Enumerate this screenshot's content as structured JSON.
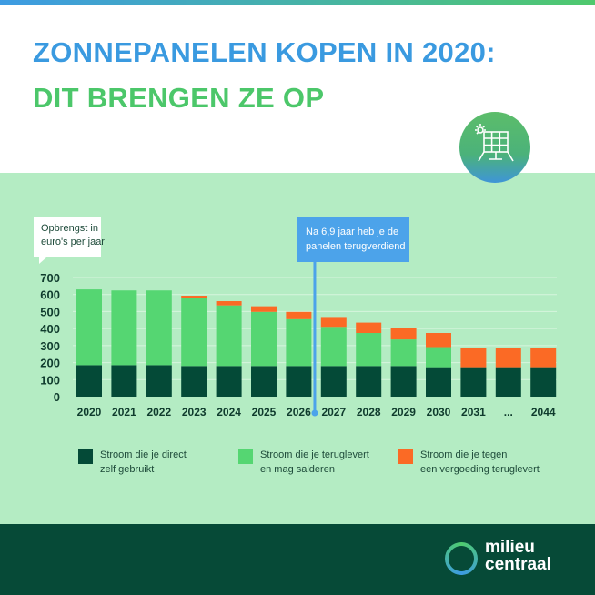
{
  "title": {
    "line1": "ZONNEPANELEN KOPEN IN 2020:",
    "line2": "DIT BRENGEN ZE OP"
  },
  "icon": "solar-panel-icon",
  "colors": {
    "direct": "#044a37",
    "salderen": "#55d672",
    "vergoeding": "#fb6a25",
    "title_blue": "#3a9ae0",
    "title_green": "#4cc76a",
    "callout": "#4ca3ea"
  },
  "chart_data": {
    "type": "bar",
    "stacked": true,
    "ylabel": "Opbrengst in euro's per jaar",
    "ylim": [
      0,
      700
    ],
    "yticks": [
      0,
      100,
      200,
      300,
      400,
      500,
      600,
      700
    ],
    "grid": true,
    "categories": [
      "2020",
      "2021",
      "2022",
      "2023",
      "2024",
      "2025",
      "2026",
      "2027",
      "2028",
      "2029",
      "2030",
      "2031",
      "...",
      "2044"
    ],
    "series": [
      {
        "name": "Stroom die je direct zelf gebruikt",
        "values": [
          185,
          185,
          185,
          180,
          180,
          180,
          180,
          180,
          180,
          180,
          173,
          173,
          173,
          173
        ]
      },
      {
        "name": "Stroom die je teruglevert en mag salderen",
        "values": [
          445,
          439,
          439,
          401,
          356,
          318,
          275,
          230,
          194,
          156,
          118,
          0,
          0,
          0
        ]
      },
      {
        "name": "Stroom die je tegen een vergoeding teruglevert",
        "values": [
          0,
          0,
          0,
          12,
          25,
          33,
          43,
          58,
          61,
          69,
          83,
          111,
          111,
          111
        ]
      }
    ],
    "annotation": {
      "text": "Na 6,9 jaar heb je de panelen terugverdiend",
      "x_years": 6.9
    },
    "legend_placement": "bottom"
  },
  "legend": [
    {
      "line1": "Stroom die je direct",
      "line2": "zelf gebruikt"
    },
    {
      "line1": "Stroom die je teruglevert",
      "line2": "en mag salderen"
    },
    {
      "line1": "Stroom die je tegen",
      "line2": "een vergoeding teruglevert"
    }
  ],
  "ylabel": {
    "line1": "Opbrengst in",
    "line2": "euro's per jaar"
  },
  "callout": {
    "line1": "Na 6,9 jaar heb je de",
    "line2": "panelen terugverdiend"
  },
  "logo": {
    "line1": "milieu",
    "line2": "centraal"
  }
}
